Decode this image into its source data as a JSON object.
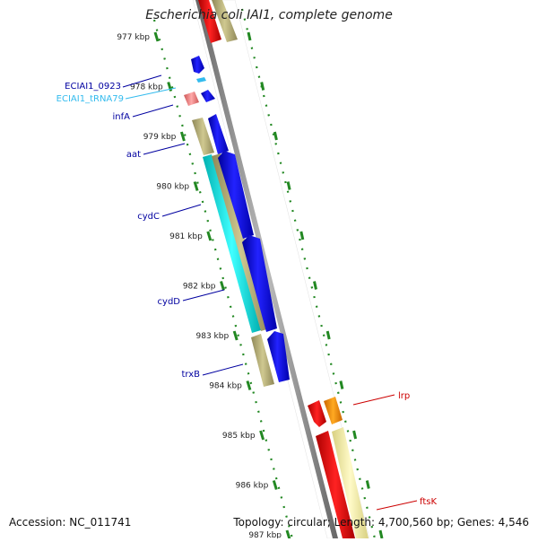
{
  "title": "Escherichia coli IAI1, complete genome",
  "footer": {
    "accession": "Accession: NC_011741",
    "topology": "Topology: circular; Length: 4,700,560 bp; Genes: 4,546"
  },
  "ticks": [
    "977 kbp",
    "978 kbp",
    "979 kbp",
    "980 kbp",
    "981 kbp",
    "982 kbp",
    "983 kbp",
    "984 kbp",
    "985 kbp",
    "986 kbp",
    "987 kbp"
  ],
  "gene_labels": [
    {
      "text": "ECIAI1_0923",
      "color": "#0000a0"
    },
    {
      "text": "ECIAI1_tRNA79",
      "color": "#33bbee"
    },
    {
      "text": "infA",
      "color": "#0000a0"
    },
    {
      "text": "aat",
      "color": "#0000a0"
    },
    {
      "text": "cydC",
      "color": "#0000a0"
    },
    {
      "text": "cydD",
      "color": "#0000a0"
    },
    {
      "text": "trxB",
      "color": "#0000a0"
    },
    {
      "text": "lrp",
      "color": "#cc0000"
    },
    {
      "text": "ftsK",
      "color": "#cc0000"
    }
  ],
  "colors": {
    "backbone": "#888888",
    "tick": "#228822",
    "cds_blue": "#0000ee",
    "cds_tan": "#b8b078",
    "cds_cyan": "#00e8e8",
    "cds_red": "#ee0000",
    "cds_yellow": "#eee8a0",
    "trna_pink": "#ee7f7f",
    "orange": "#ff8800"
  }
}
